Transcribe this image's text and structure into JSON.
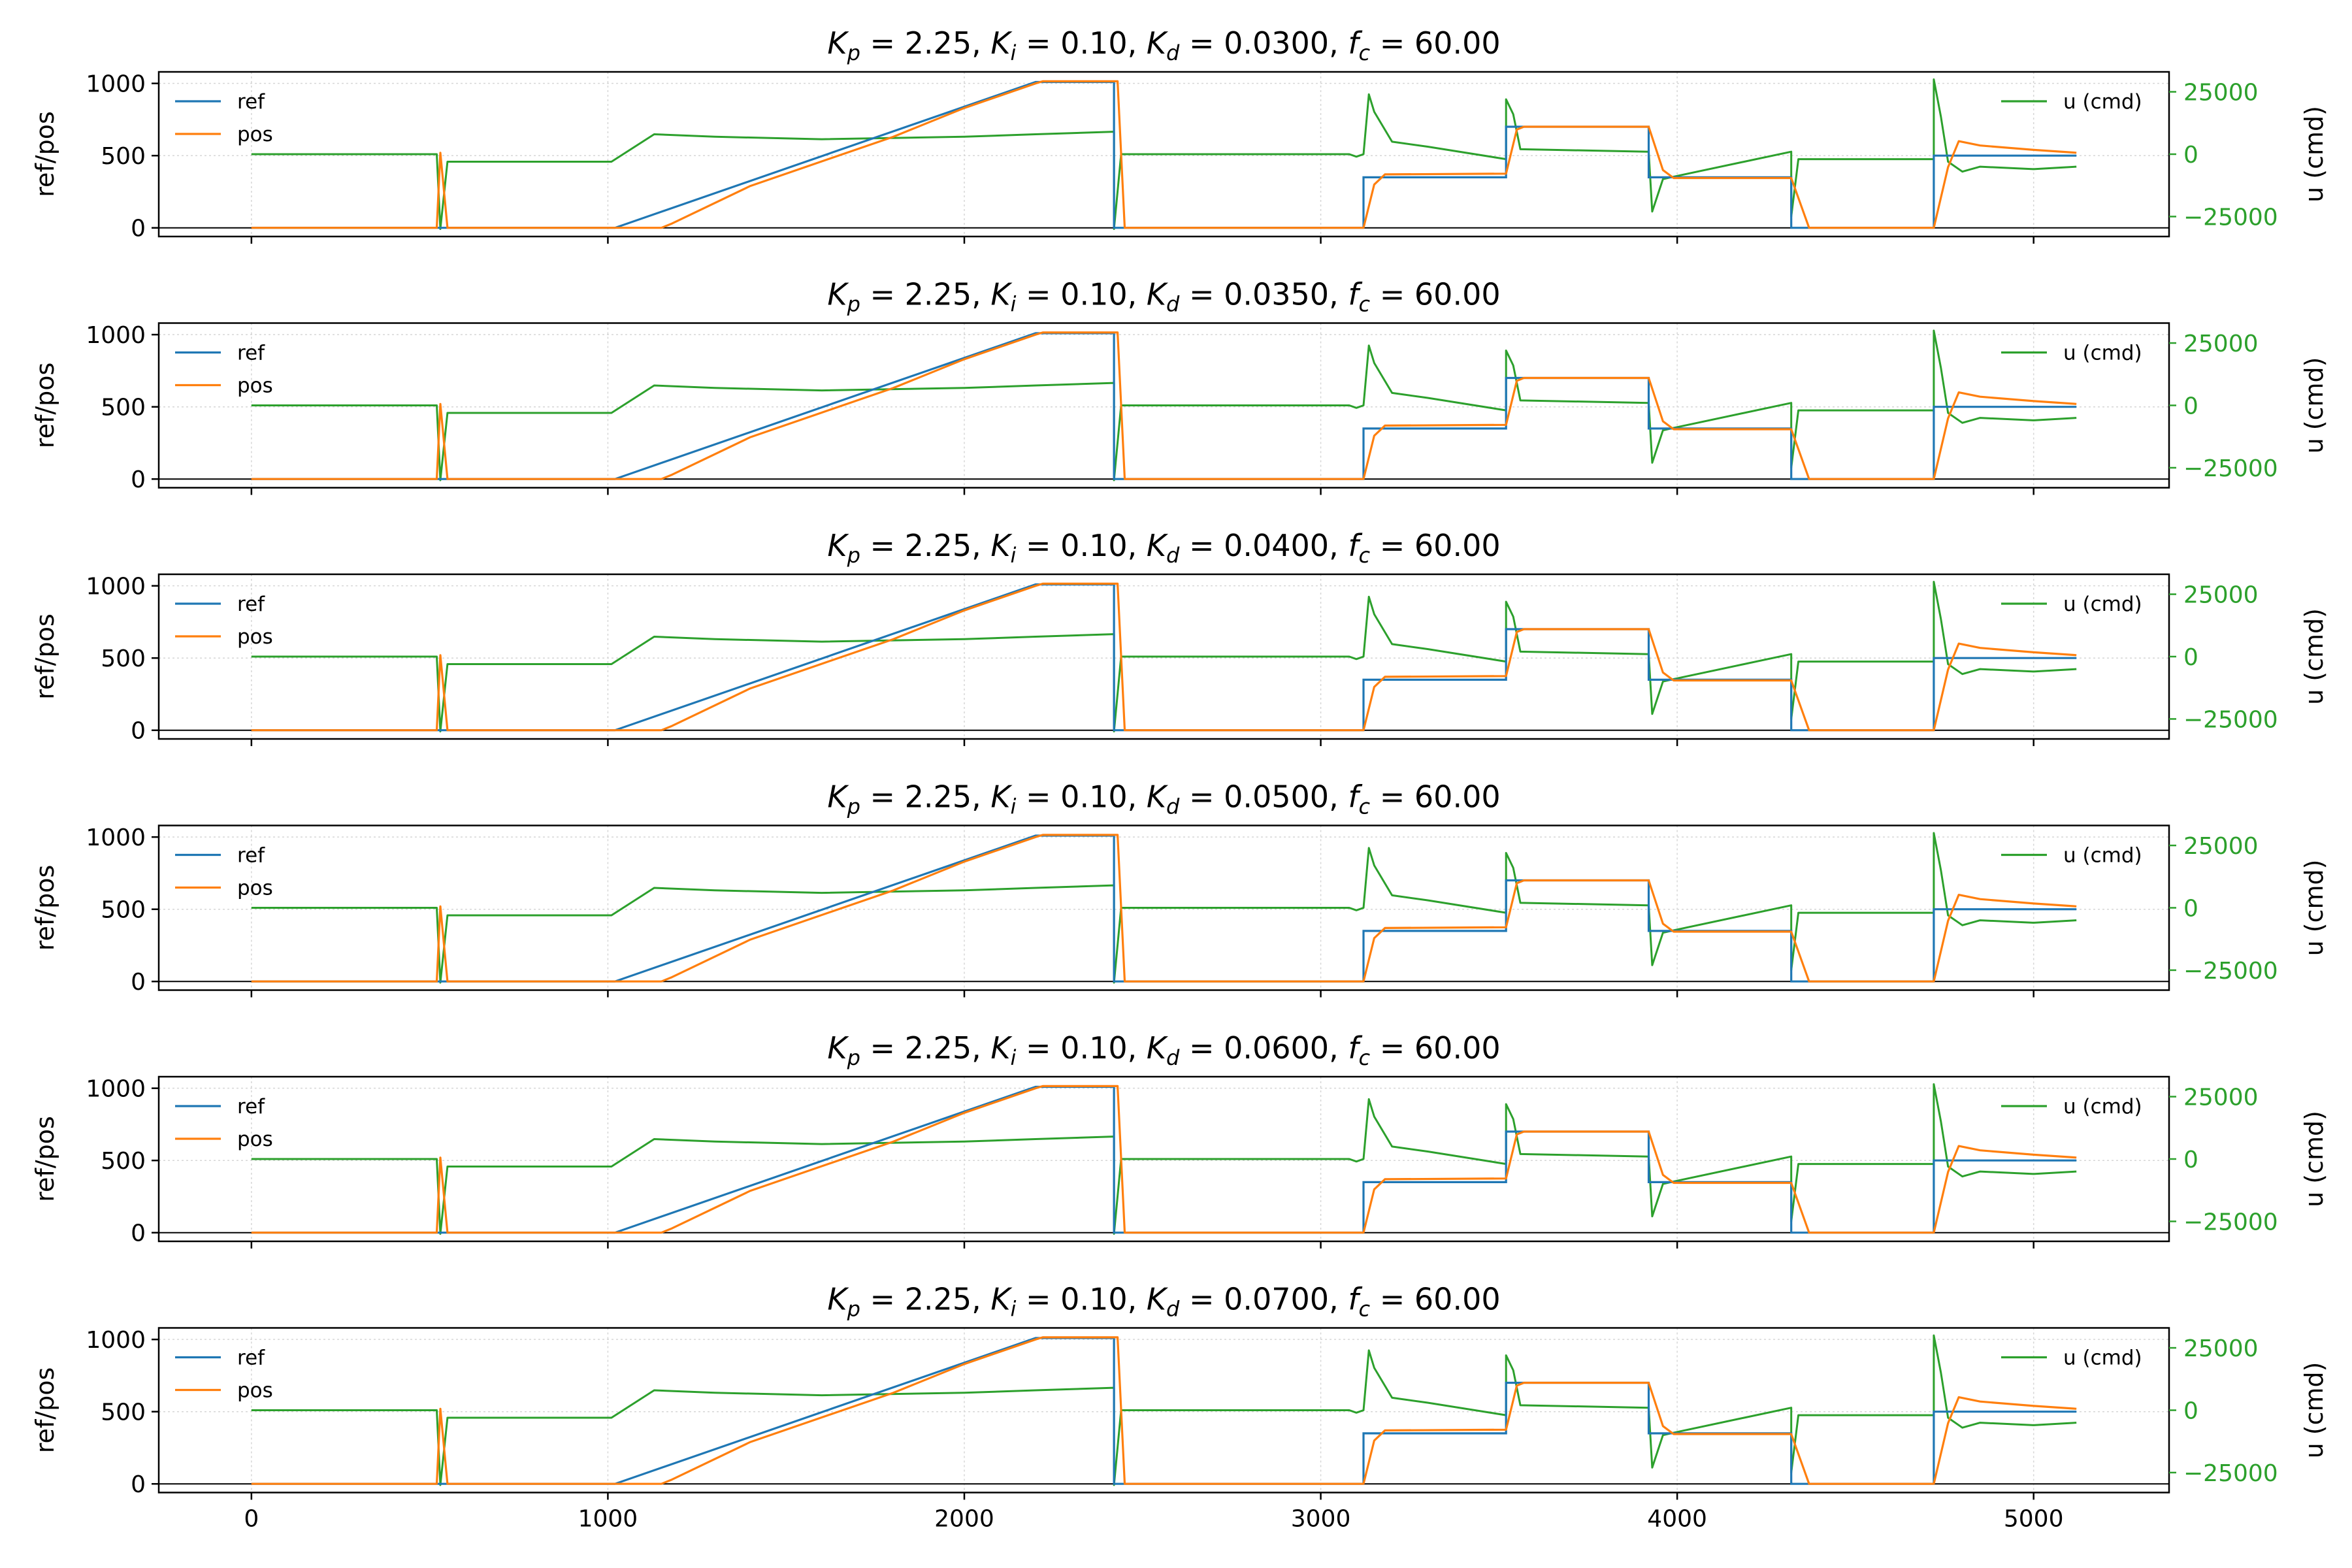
{
  "chart_data": {
    "type": "line",
    "colors": {
      "ref": "#1f77b4",
      "pos": "#ff7f0e",
      "u": "#2ca02c"
    },
    "x_axis": {
      "lim": [
        -260,
        5380
      ],
      "ticks": [
        0,
        1000,
        2000,
        3000,
        4000,
        5000
      ],
      "tick_labels": [
        "0",
        "1000",
        "2000",
        "3000",
        "4000",
        "5000"
      ]
    },
    "left_axis": {
      "label": "ref/pos",
      "lim": [
        -60,
        1080
      ],
      "ticks": [
        0,
        500,
        1000
      ],
      "tick_labels": [
        "0",
        "500",
        "1000"
      ]
    },
    "right_axis": {
      "label": "u (cmd)",
      "lim": [
        -33000,
        33000
      ],
      "ticks": [
        -25000,
        0,
        25000
      ],
      "tick_labels": [
        "−25000",
        "0",
        "25000"
      ]
    },
    "grid": true,
    "legend_left": {
      "placement": "upper-left",
      "entries": [
        "ref",
        "pos"
      ]
    },
    "legend_right": {
      "placement": "upper-right",
      "entries": [
        "u (cmd)"
      ]
    },
    "ref_series": [
      [
        0,
        0
      ],
      [
        1020,
        0
      ],
      [
        2200,
        1010
      ],
      [
        2420,
        1010
      ],
      [
        2420,
        0
      ],
      [
        3120,
        0
      ],
      [
        3120,
        350
      ],
      [
        3520,
        350
      ],
      [
        3520,
        700
      ],
      [
        3920,
        700
      ],
      [
        3920,
        350
      ],
      [
        4320,
        350
      ],
      [
        4320,
        0
      ],
      [
        4720,
        0
      ],
      [
        4720,
        500
      ],
      [
        5120,
        500
      ]
    ],
    "pos_series": [
      [
        0,
        0
      ],
      [
        520,
        0
      ],
      [
        530,
        520
      ],
      [
        550,
        0
      ],
      [
        1150,
        0
      ],
      [
        1180,
        30
      ],
      [
        1400,
        290
      ],
      [
        1800,
        630
      ],
      [
        2000,
        830
      ],
      [
        2200,
        1000
      ],
      [
        2220,
        1015
      ],
      [
        2430,
        1015
      ],
      [
        2450,
        0
      ],
      [
        3120,
        0
      ],
      [
        3150,
        300
      ],
      [
        3180,
        370
      ],
      [
        3520,
        375
      ],
      [
        3550,
        680
      ],
      [
        3570,
        700
      ],
      [
        3920,
        700
      ],
      [
        3960,
        400
      ],
      [
        3990,
        345
      ],
      [
        4320,
        345
      ],
      [
        4370,
        0
      ],
      [
        4720,
        0
      ],
      [
        4760,
        420
      ],
      [
        4790,
        600
      ],
      [
        4850,
        570
      ],
      [
        5000,
        540
      ],
      [
        5120,
        520
      ]
    ],
    "u_series": [
      [
        0,
        0
      ],
      [
        520,
        0
      ],
      [
        530,
        -30000
      ],
      [
        550,
        -3000
      ],
      [
        1010,
        -3000
      ],
      [
        1130,
        8000
      ],
      [
        1300,
        7000
      ],
      [
        1600,
        6000
      ],
      [
        2000,
        7000
      ],
      [
        2200,
        8000
      ],
      [
        2420,
        9000
      ],
      [
        2420,
        -30000
      ],
      [
        2440,
        0
      ],
      [
        3080,
        0
      ],
      [
        3100,
        -1000
      ],
      [
        3120,
        0
      ],
      [
        3135,
        24000
      ],
      [
        3150,
        17000
      ],
      [
        3200,
        5000
      ],
      [
        3300,
        3000
      ],
      [
        3520,
        -2000
      ],
      [
        3520,
        22000
      ],
      [
        3540,
        16000
      ],
      [
        3560,
        2000
      ],
      [
        3920,
        1000
      ],
      [
        3930,
        -23000
      ],
      [
        3960,
        -10000
      ],
      [
        3990,
        -9000
      ],
      [
        4320,
        1000
      ],
      [
        4320,
        -25000
      ],
      [
        4340,
        -2000
      ],
      [
        4720,
        -2000
      ],
      [
        4720,
        30000
      ],
      [
        4740,
        15000
      ],
      [
        4760,
        -3000
      ],
      [
        4800,
        -7000
      ],
      [
        4850,
        -5000
      ],
      [
        5000,
        -6000
      ],
      [
        5120,
        -5000
      ]
    ],
    "panels": [
      {
        "title": "$K_p = 2.25,\\ \\ K_i = 0.10,\\ \\ K_d = 0.0300,\\ \\ f_c = 60.00$",
        "kp": "2.25",
        "ki": "0.10",
        "kd": "0.0300",
        "fc": "60.00"
      },
      {
        "title": "$K_p = 2.25,\\ \\ K_i = 0.10,\\ \\ K_d = 0.0350,\\ \\ f_c = 60.00$",
        "kp": "2.25",
        "ki": "0.10",
        "kd": "0.0350",
        "fc": "60.00"
      },
      {
        "title": "$K_p = 2.25,\\ \\ K_i = 0.10,\\ \\ K_d = 0.0400,\\ \\ f_c = 60.00$",
        "kp": "2.25",
        "ki": "0.10",
        "kd": "0.0400",
        "fc": "60.00"
      },
      {
        "title": "$K_p = 2.25,\\ \\ K_i = 0.10,\\ \\ K_d = 0.0500,\\ \\ f_c = 60.00$",
        "kp": "2.25",
        "ki": "0.10",
        "kd": "0.0500",
        "fc": "60.00"
      },
      {
        "title": "$K_p = 2.25,\\ \\ K_i = 0.10,\\ \\ K_d = 0.0600,\\ \\ f_c = 60.00$",
        "kp": "2.25",
        "ki": "0.10",
        "kd": "0.0600",
        "fc": "60.00"
      },
      {
        "title": "$K_p = 2.25,\\ \\ K_i = 0.10,\\ \\ K_d = 0.0700,\\ \\ f_c = 60.00$",
        "kp": "2.25",
        "ki": "0.10",
        "kd": "0.0700",
        "fc": "60.00"
      }
    ]
  }
}
